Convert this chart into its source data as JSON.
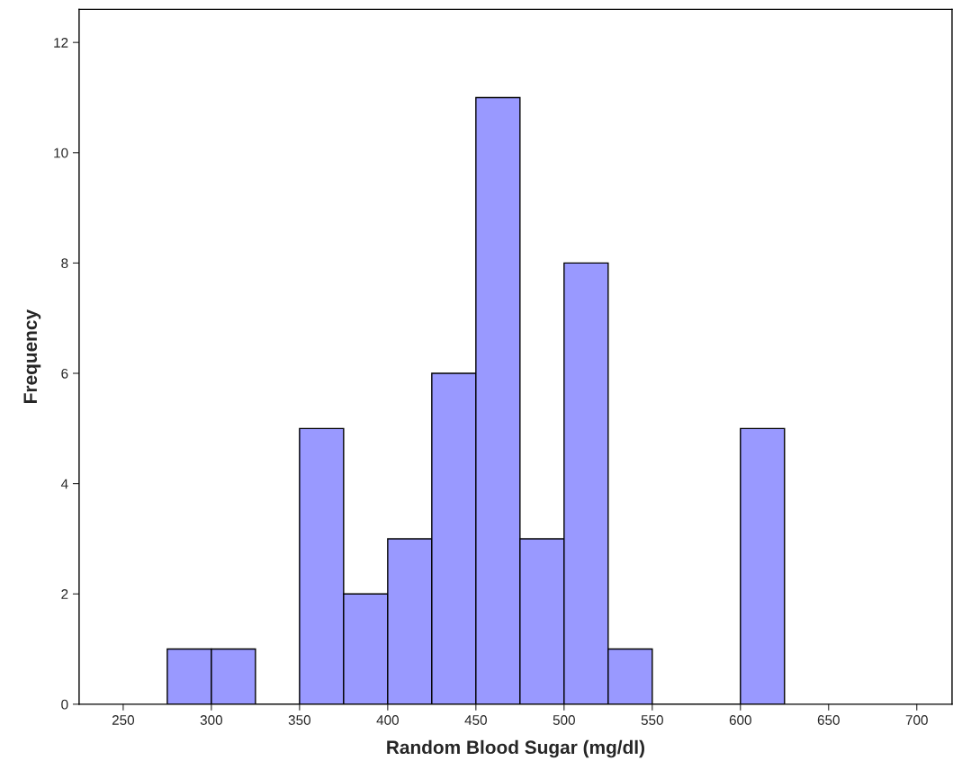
{
  "chart_data": {
    "type": "histogram",
    "xlabel": "Random Blood Sugar (mg/dl)",
    "ylabel": "Frequency",
    "bins": [
      275,
      300,
      325,
      350,
      375,
      400,
      425,
      450,
      475,
      500,
      525,
      550,
      575,
      600,
      625
    ],
    "values": [
      1,
      1,
      0,
      5,
      2,
      3,
      6,
      11,
      3,
      8,
      1,
      0,
      0,
      5
    ],
    "color": "#9999ff",
    "xlim": [
      225,
      720
    ],
    "xticks": [
      250,
      300,
      350,
      400,
      450,
      500,
      550,
      600,
      650,
      700
    ],
    "ylim": [
      0,
      12.6
    ],
    "yticks": [
      0,
      2,
      4,
      6,
      8,
      10,
      12
    ],
    "grid": false
  }
}
